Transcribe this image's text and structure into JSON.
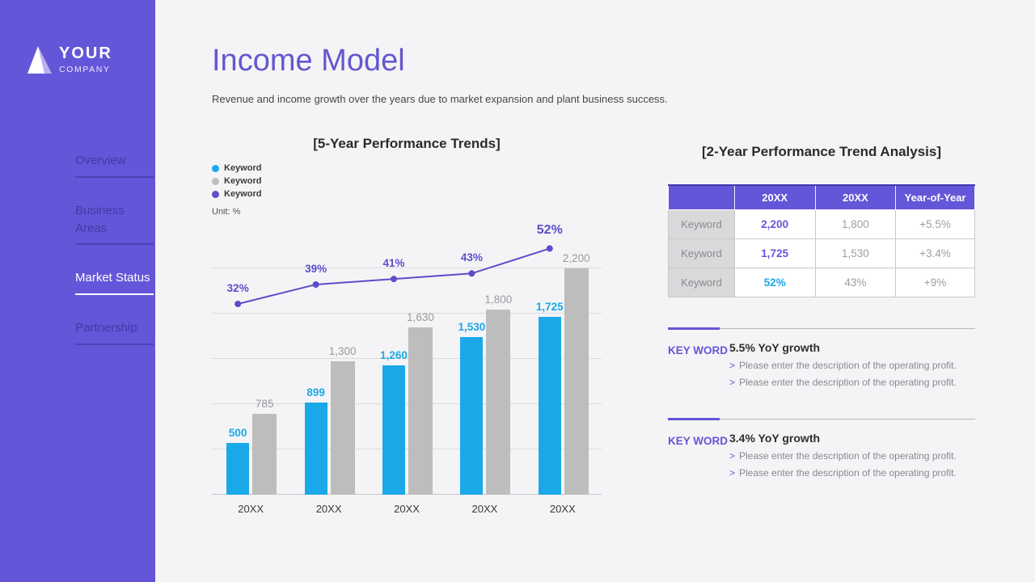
{
  "colors": {
    "accent_purple": "#6456D8",
    "accent_blue": "#1BA8E9",
    "bar_gray": "#BDBDBD",
    "line_purple": "#5B4EC8"
  },
  "sidebar": {
    "logo": {
      "line1": "YOUR",
      "line2": "COMPANY"
    },
    "items": [
      {
        "label": "Overview",
        "active": false
      },
      {
        "label": "Business Areas",
        "active": false
      },
      {
        "label": "Market Status",
        "active": true
      },
      {
        "label": "Partnership",
        "active": false
      }
    ]
  },
  "header": {
    "title": "Income Model",
    "subtitle": "Revenue and income growth over the years due to market expansion and plant business success."
  },
  "chart_section": {
    "title": "[5-Year Performance Trends]",
    "unit_label": "Unit: %",
    "legend": [
      {
        "label": "Keyword",
        "color": "#1BA8E9"
      },
      {
        "label": "Keyword",
        "color": "#BDBDBD"
      },
      {
        "label": "Keyword",
        "color": "#5B4EC8"
      }
    ]
  },
  "chart_data": {
    "type": "bar+line combo",
    "title": "[5-Year Performance Trends]",
    "unit": "%",
    "grid": true,
    "categories": [
      "20XX",
      "20XX",
      "20XX",
      "20XX",
      "20XX"
    ],
    "series": [
      {
        "name": "Keyword",
        "type": "bar",
        "color": "#1BA8E9",
        "label_color": "#1BA8E9",
        "label_bold": true,
        "values": [
          500,
          899,
          1260,
          1530,
          1725
        ],
        "labels": [
          "500",
          "899",
          "1,260",
          "1,530",
          "1,725"
        ]
      },
      {
        "name": "Keyword",
        "type": "bar",
        "color": "#BDBDBD",
        "label_color": "#9A9A9E",
        "label_bold": false,
        "values": [
          785,
          1300,
          1630,
          1800,
          2200
        ],
        "labels": [
          "785",
          "1,300",
          "1,630",
          "1,800",
          "2,200"
        ]
      },
      {
        "name": "Keyword",
        "type": "line",
        "color": "#5B4EC8",
        "label_color": "#5B4EC8",
        "label_bold": true,
        "values": [
          32,
          39,
          41,
          43,
          52
        ],
        "labels": [
          "32%",
          "39%",
          "41%",
          "43%",
          "52%"
        ]
      }
    ],
    "ylim_line_pct": [
      25,
      60
    ]
  },
  "analysis": {
    "title": "[2-Year Performance Trend Analysis]",
    "bullet_prefix": ">",
    "table": {
      "headers": [
        "",
        "20XX",
        "20XX",
        "Year-of-Year"
      ],
      "rows": [
        {
          "label": "Keyword",
          "v1": "2,200",
          "v2": "1,800",
          "yoy": "+5.5%",
          "v1_color": "#6456D8"
        },
        {
          "label": "Keyword",
          "v1": "1,725",
          "v2": "1,530",
          "yoy": "+3.4%",
          "v1_color": "#6456D8"
        },
        {
          "label": "Keyword",
          "v1": "52%",
          "v2": "43%",
          "yoy": "+9%",
          "v1_color": "#1BA8E9"
        }
      ]
    },
    "notes": [
      {
        "keyword": "KEY WORD",
        "heading": "5.5% YoY growth",
        "bullets": [
          "Please enter the description of the operating profit.",
          "Please enter the description of the operating profit."
        ]
      },
      {
        "keyword": "KEY WORD",
        "heading": "3.4% YoY growth",
        "bullets": [
          "Please enter the description of the operating profit.",
          "Please enter the description of the operating profit."
        ]
      }
    ]
  }
}
